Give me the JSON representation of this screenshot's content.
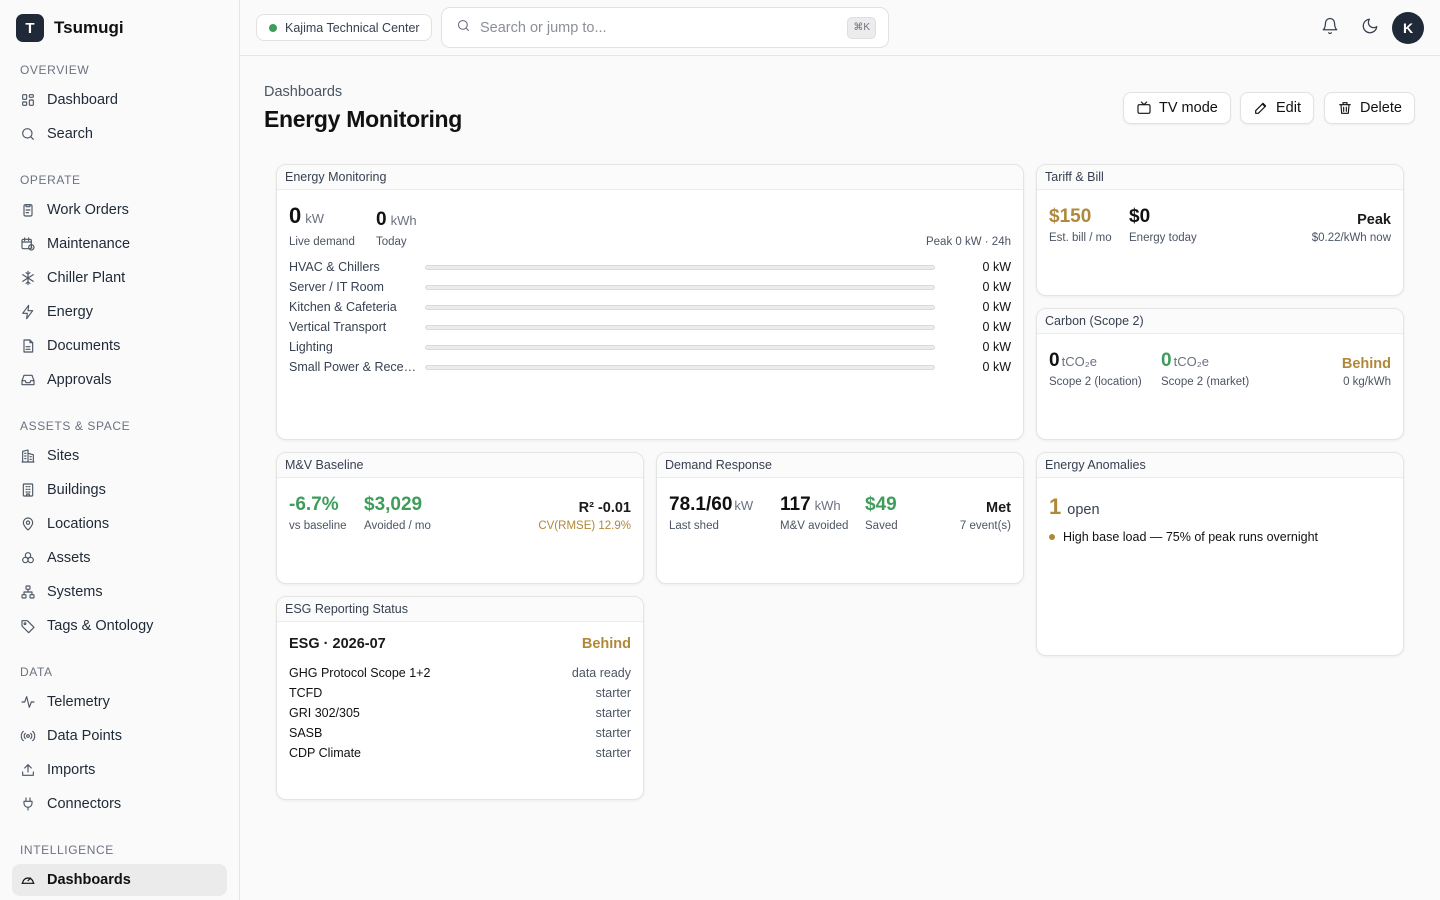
{
  "app": {
    "logo_letter": "T",
    "name": "Tsumugi"
  },
  "sidebar": {
    "sections": [
      {
        "title": "Overview",
        "items": [
          {
            "label": "Dashboard",
            "icon": "grid-icon"
          },
          {
            "label": "Search",
            "icon": "search-icon"
          }
        ]
      },
      {
        "title": "Operate",
        "items": [
          {
            "label": "Work Orders",
            "icon": "clipboard-icon"
          },
          {
            "label": "Maintenance",
            "icon": "calendar-clock-icon"
          },
          {
            "label": "Chiller Plant",
            "icon": "snowflake-icon"
          },
          {
            "label": "Energy",
            "icon": "bolt-icon"
          },
          {
            "label": "Documents",
            "icon": "document-icon"
          },
          {
            "label": "Approvals",
            "icon": "inbox-icon"
          }
        ]
      },
      {
        "title": "Assets & Space",
        "items": [
          {
            "label": "Sites",
            "icon": "buildings-icon"
          },
          {
            "label": "Buildings",
            "icon": "building-icon"
          },
          {
            "label": "Locations",
            "icon": "map-pin-icon"
          },
          {
            "label": "Assets",
            "icon": "boxes-icon"
          },
          {
            "label": "Systems",
            "icon": "network-icon"
          },
          {
            "label": "Tags & Ontology",
            "icon": "tag-icon"
          }
        ]
      },
      {
        "title": "Data",
        "items": [
          {
            "label": "Telemetry",
            "icon": "activity-icon"
          },
          {
            "label": "Data Points",
            "icon": "radio-icon"
          },
          {
            "label": "Imports",
            "icon": "upload-icon"
          },
          {
            "label": "Connectors",
            "icon": "plug-icon"
          }
        ]
      },
      {
        "title": "Intelligence",
        "items": [
          {
            "label": "Dashboards",
            "icon": "gauge-icon",
            "active": true
          }
        ]
      }
    ]
  },
  "topbar": {
    "site_name": "Kajima Technical Center",
    "site_status_color": "#3f9d5b",
    "search_placeholder": "Search or jump to...",
    "search_shortcut": "⌘K",
    "avatar_letter": "K"
  },
  "header": {
    "breadcrumb": "Dashboards",
    "title": "Energy Monitoring",
    "buttons": {
      "tv": "TV mode",
      "edit": "Edit",
      "delete": "Delete"
    }
  },
  "energy": {
    "title": "Energy Monitoring",
    "live_value": "0",
    "live_unit": "kW",
    "live_label": "Live demand",
    "today_value": "0",
    "today_unit": "kWh",
    "today_label": "Today",
    "peak_note": "Peak 0 kW · 24h",
    "loads": [
      {
        "label": "HVAC & Chillers",
        "value": "0 kW",
        "share": 0
      },
      {
        "label": "Server / IT Room",
        "value": "0 kW",
        "share": 0
      },
      {
        "label": "Kitchen & Cafeteria",
        "value": "0 kW",
        "share": 0
      },
      {
        "label": "Vertical Transport",
        "value": "0 kW",
        "share": 0
      },
      {
        "label": "Lighting",
        "value": "0 kW",
        "share": 0
      },
      {
        "label": "Small Power & Receptacles",
        "value": "0 kW",
        "share": 0
      }
    ]
  },
  "tariff": {
    "title": "Tariff & Bill",
    "bill_value": "$150",
    "bill_label": "Est. bill / mo",
    "energy_value": "$0",
    "energy_label": "Energy today",
    "period": "Peak",
    "rate": "$0.22/kWh now"
  },
  "carbon": {
    "title": "Carbon (Scope 2)",
    "location_value": "0",
    "location_unit": "tCO₂e",
    "location_label": "Scope 2 (location)",
    "market_value": "0",
    "market_unit": "tCO₂e",
    "market_label": "Scope 2 (market)",
    "status": "Behind",
    "intensity": "0 kg/kWh"
  },
  "mv": {
    "title": "M&V Baseline",
    "delta_value": "-6.7%",
    "delta_label": "vs baseline",
    "avoided_value": "$3,029",
    "avoided_label": "Avoided / mo",
    "r2": "R² -0.01",
    "cv": "CV(RMSE) 12.9%"
  },
  "dr": {
    "title": "Demand Response",
    "shed_value": "78.1/60",
    "shed_unit": "kW",
    "shed_label": "Last shed",
    "avoided_value": "117",
    "avoided_unit": "kWh",
    "avoided_label": "M&V avoided",
    "saved_value": "$49",
    "saved_label": "Saved",
    "status": "Met",
    "events": "7 event(s)"
  },
  "anomalies": {
    "title": "Energy Anomalies",
    "count": "1",
    "count_label": "open",
    "items": [
      {
        "text": "High base load — 75% of peak runs overnight",
        "color": "#b0883a"
      }
    ]
  },
  "esg": {
    "title": "ESG Reporting Status",
    "period": "ESG · 2026-07",
    "status": "Behind",
    "frameworks": [
      {
        "name": "GHG Protocol Scope 1+2",
        "state": "data ready"
      },
      {
        "name": "TCFD",
        "state": "starter"
      },
      {
        "name": "GRI 302/305",
        "state": "starter"
      },
      {
        "name": "SASB",
        "state": "starter"
      },
      {
        "name": "CDP Climate",
        "state": "starter"
      }
    ]
  }
}
